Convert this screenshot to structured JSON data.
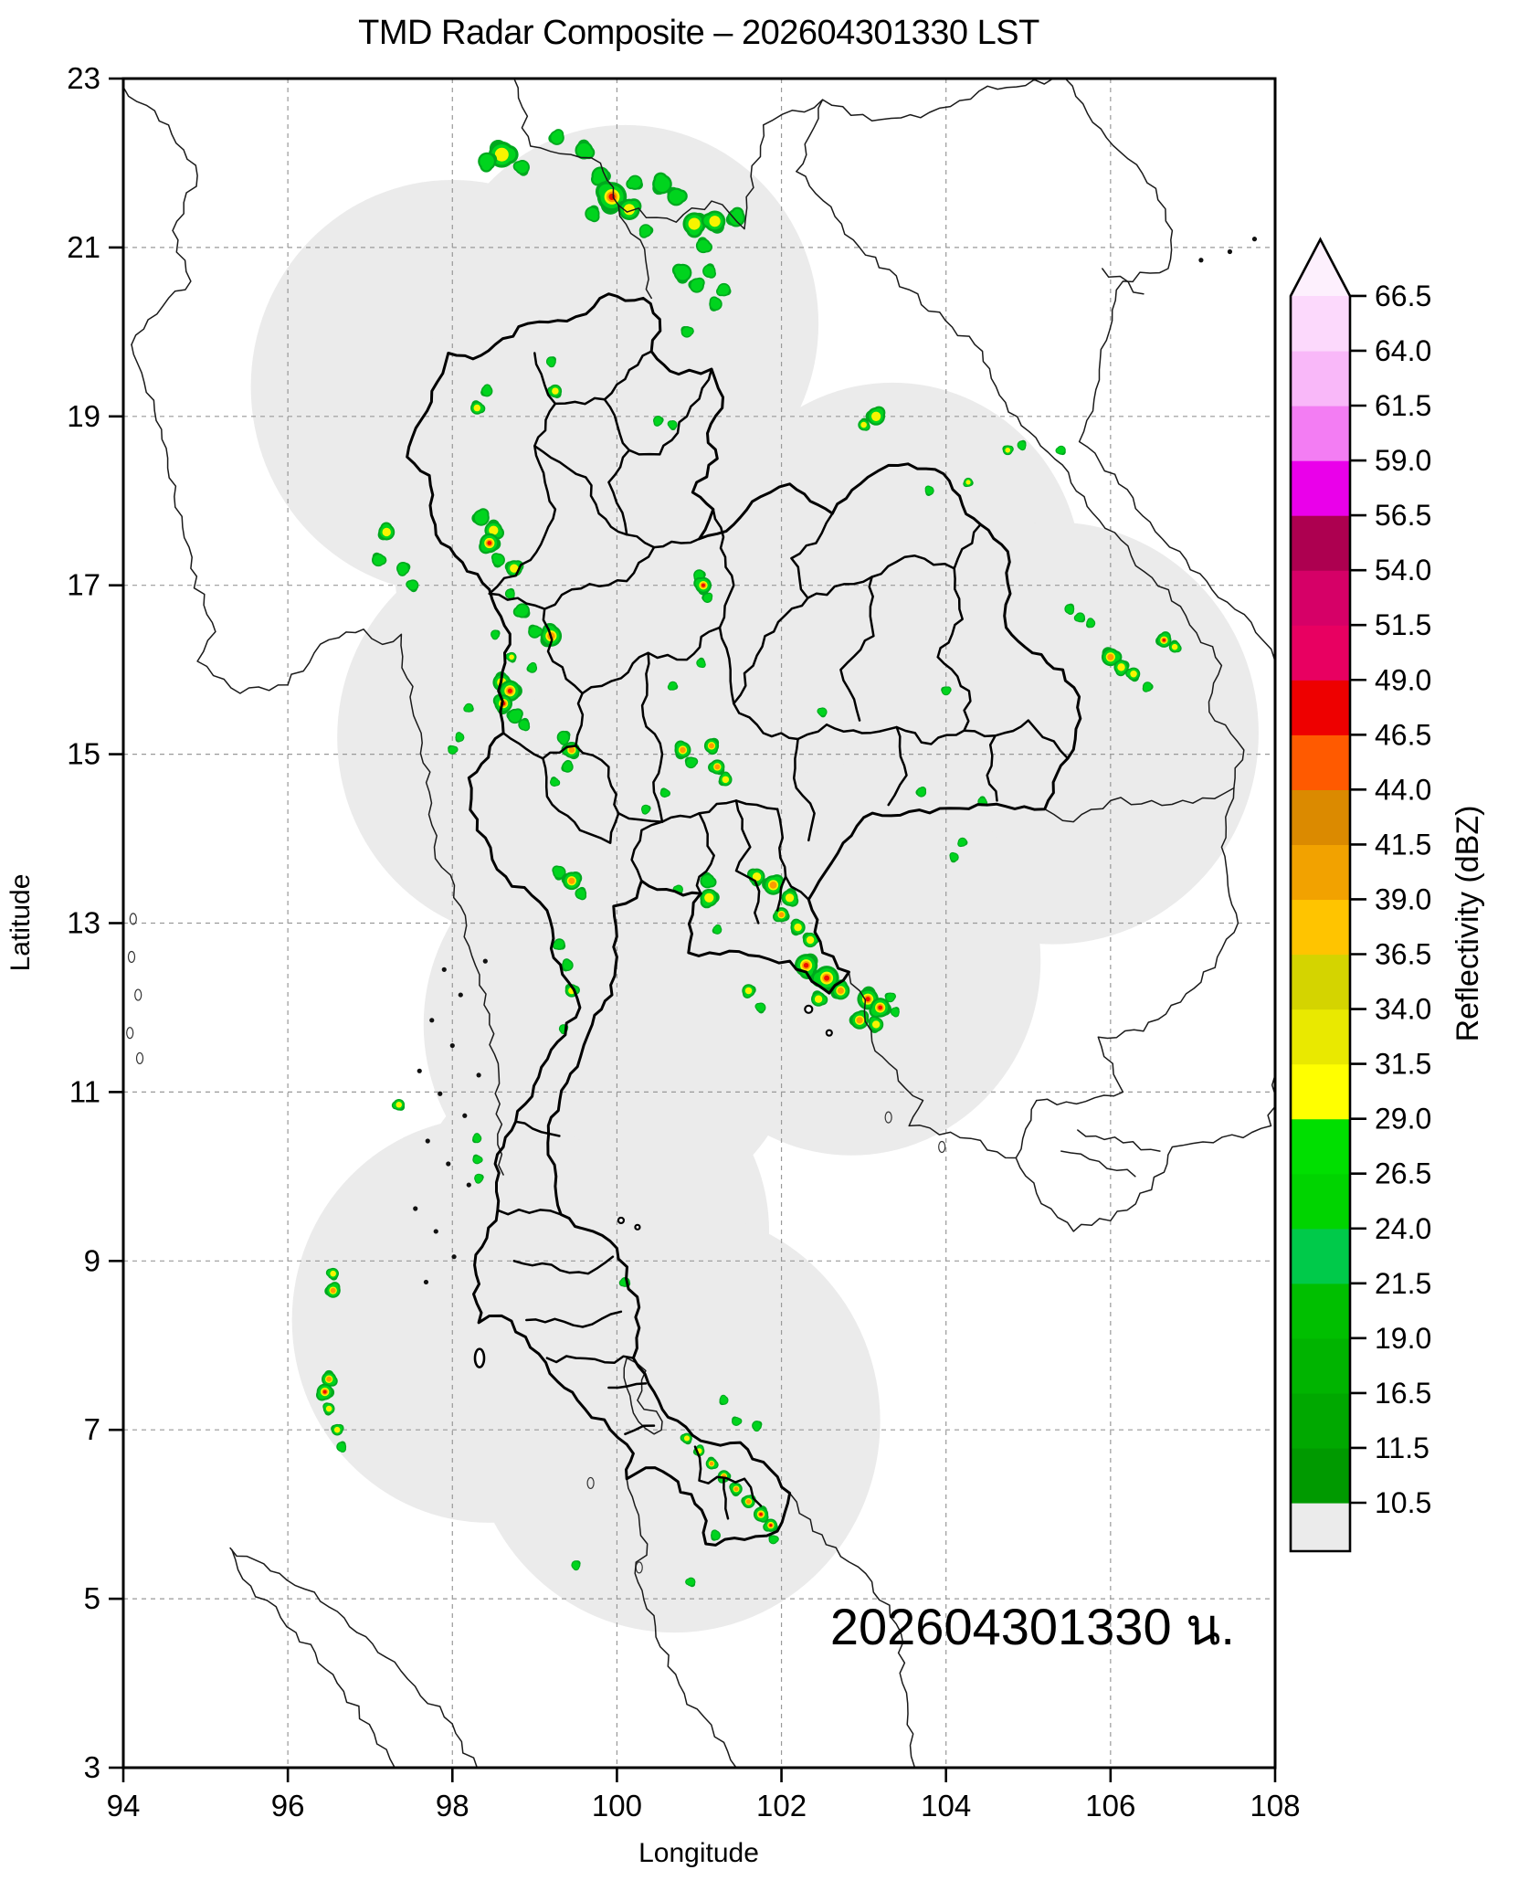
{
  "title": "TMD Radar Composite – 202604301330 LST",
  "annotation": {
    "timestamp": "202604301330 น."
  },
  "axes": {
    "xlabel": "Longitude",
    "ylabel": "Latitude",
    "x_ticks": [
      "94",
      "96",
      "98",
      "100",
      "102",
      "104",
      "106",
      "108"
    ],
    "y_ticks": [
      "3",
      "5",
      "7",
      "9",
      "11",
      "13",
      "15",
      "17",
      "19",
      "21",
      "23"
    ],
    "x_range": [
      94,
      108
    ],
    "y_range": [
      3,
      23
    ],
    "grid": "dashed"
  },
  "colorbar": {
    "label": "Reflectivity (dBZ)",
    "tick_labels": [
      "10.5",
      "11.5",
      "16.5",
      "19.0",
      "21.5",
      "24.0",
      "26.5",
      "29.0",
      "31.5",
      "34.0",
      "36.5",
      "39.0",
      "41.5",
      "44.0",
      "46.5",
      "49.0",
      "51.5",
      "54.0",
      "56.5",
      "59.0",
      "61.5",
      "64.0",
      "66.5"
    ],
    "segment_colors_bottom_to_top": [
      "#009a00",
      "#00a800",
      "#00b400",
      "#00bf00",
      "#00ca4a",
      "#00d400",
      "#00df00",
      "#ffff00",
      "#e9e900",
      "#d4d400",
      "#ffc400",
      "#f2a200",
      "#db8a00",
      "#ff5a00",
      "#ee0000",
      "#e80061",
      "#d60067",
      "#ad0050",
      "#ea00ea",
      "#f37df3",
      "#f9b8f9",
      "#fcd9fc"
    ],
    "under_color": "#ebebeb",
    "over_color": "#fdf0fd",
    "extend": "max"
  },
  "map": {
    "coverage_fill": "#ebebeb",
    "echo_palette": {
      "green_edge": "#00a81e",
      "green": "#00d41e",
      "yellow": "#f8f400",
      "orange": "#ff9b00",
      "red": "#ee1000"
    },
    "radar_coverage_circles": [
      {
        "lon": 98.0,
        "lat": 19.35,
        "radius_deg": 2.45
      },
      {
        "lon": 100.1,
        "lat": 20.1,
        "radius_deg": 2.35
      },
      {
        "lon": 99.7,
        "lat": 17.2,
        "radius_deg": 2.4
      },
      {
        "lon": 100.75,
        "lat": 16.1,
        "radius_deg": 2.4
      },
      {
        "lon": 99.0,
        "lat": 15.2,
        "radius_deg": 2.4
      },
      {
        "lon": 102.5,
        "lat": 16.3,
        "radius_deg": 2.4
      },
      {
        "lon": 103.35,
        "lat": 17.1,
        "radius_deg": 2.3
      },
      {
        "lon": 105.3,
        "lat": 15.25,
        "radius_deg": 2.5
      },
      {
        "lon": 100.6,
        "lat": 14.0,
        "radius_deg": 2.3
      },
      {
        "lon": 100.75,
        "lat": 13.0,
        "radius_deg": 2.3
      },
      {
        "lon": 102.85,
        "lat": 12.55,
        "radius_deg": 2.3
      },
      {
        "lon": 99.95,
        "lat": 11.8,
        "radius_deg": 2.3
      },
      {
        "lon": 99.65,
        "lat": 9.35,
        "radius_deg": 2.2
      },
      {
        "lon": 98.45,
        "lat": 8.3,
        "radius_deg": 2.4
      },
      {
        "lon": 100.7,
        "lat": 7.1,
        "radius_deg": 2.5
      }
    ],
    "echo_tiers": {
      "1": "green <29 dBZ",
      "2": "yellow 29-36.5 dBZ",
      "3": "orange 36.5-46.5 dBZ",
      "4": "red >46.5 dBZ"
    },
    "echoes": [
      [
        98.6,
        22.1,
        2,
        0.16
      ],
      [
        98.42,
        22.02,
        1,
        0.11
      ],
      [
        98.85,
        21.95,
        1,
        0.09
      ],
      [
        99.27,
        22.3,
        1,
        0.09
      ],
      [
        99.6,
        22.15,
        1,
        0.11
      ],
      [
        99.8,
        21.85,
        1,
        0.11
      ],
      [
        99.94,
        21.6,
        4,
        0.18
      ],
      [
        100.15,
        21.45,
        2,
        0.13
      ],
      [
        99.7,
        21.4,
        1,
        0.09
      ],
      [
        100.22,
        21.77,
        1,
        0.09
      ],
      [
        100.55,
        21.75,
        1,
        0.12
      ],
      [
        100.72,
        21.6,
        1,
        0.11
      ],
      [
        100.94,
        21.28,
        2,
        0.14
      ],
      [
        101.19,
        21.31,
        2,
        0.13
      ],
      [
        101.45,
        21.35,
        1,
        0.11
      ],
      [
        101.05,
        21.02,
        1,
        0.09
      ],
      [
        100.35,
        21.2,
        1,
        0.08
      ],
      [
        100.8,
        20.7,
        1,
        0.11
      ],
      [
        100.97,
        20.55,
        1,
        0.09
      ],
      [
        101.12,
        20.72,
        1,
        0.08
      ],
      [
        101.3,
        20.5,
        1,
        0.08
      ],
      [
        101.2,
        20.33,
        1,
        0.08
      ],
      [
        100.85,
        20.0,
        1,
        0.07
      ],
      [
        99.2,
        19.65,
        1,
        0.06
      ],
      [
        99.25,
        19.3,
        2,
        0.08
      ],
      [
        98.42,
        19.3,
        1,
        0.07
      ],
      [
        98.3,
        19.1,
        2,
        0.08
      ],
      [
        100.5,
        18.95,
        1,
        0.06
      ],
      [
        100.68,
        18.9,
        1,
        0.05
      ],
      [
        103.15,
        19.0,
        2,
        0.11
      ],
      [
        103.0,
        18.9,
        2,
        0.07
      ],
      [
        104.27,
        18.22,
        2,
        0.055
      ],
      [
        103.8,
        18.12,
        1,
        0.055
      ],
      [
        104.75,
        18.6,
        2,
        0.06
      ],
      [
        104.92,
        18.66,
        1,
        0.05
      ],
      [
        105.4,
        18.6,
        1,
        0.05
      ],
      [
        97.2,
        17.63,
        2,
        0.1
      ],
      [
        97.1,
        17.3,
        1,
        0.08
      ],
      [
        97.4,
        17.2,
        1,
        0.08
      ],
      [
        97.52,
        17.0,
        1,
        0.07
      ],
      [
        98.35,
        17.8,
        1,
        0.1
      ],
      [
        98.5,
        17.65,
        2,
        0.11
      ],
      [
        98.45,
        17.5,
        4,
        0.12
      ],
      [
        98.56,
        17.3,
        1,
        0.08
      ],
      [
        98.75,
        17.2,
        2,
        0.1
      ],
      [
        98.7,
        16.9,
        1,
        0.06
      ],
      [
        98.85,
        16.7,
        1,
        0.09
      ],
      [
        99.2,
        16.4,
        3,
        0.13
      ],
      [
        99.0,
        16.45,
        1,
        0.08
      ],
      [
        98.52,
        16.42,
        1,
        0.05
      ],
      [
        98.72,
        16.15,
        2,
        0.06
      ],
      [
        98.97,
        16.02,
        1,
        0.06
      ],
      [
        98.6,
        15.85,
        2,
        0.11
      ],
      [
        98.7,
        15.75,
        4,
        0.13
      ],
      [
        98.62,
        15.6,
        4,
        0.11
      ],
      [
        98.76,
        15.45,
        1,
        0.09
      ],
      [
        98.87,
        15.35,
        1,
        0.07
      ],
      [
        98.2,
        15.55,
        1,
        0.05
      ],
      [
        98.09,
        15.2,
        1,
        0.05
      ],
      [
        98.0,
        15.05,
        1,
        0.05
      ],
      [
        99.35,
        15.2,
        1,
        0.08
      ],
      [
        99.45,
        15.05,
        3,
        0.1
      ],
      [
        99.4,
        14.85,
        1,
        0.07
      ],
      [
        99.24,
        14.67,
        1,
        0.05
      ],
      [
        101.0,
        17.12,
        1,
        0.07
      ],
      [
        101.05,
        17.0,
        4,
        0.1
      ],
      [
        101.1,
        16.85,
        1,
        0.06
      ],
      [
        101.02,
        16.08,
        1,
        0.05
      ],
      [
        100.68,
        15.81,
        1,
        0.05
      ],
      [
        100.8,
        15.05,
        3,
        0.1
      ],
      [
        100.9,
        14.9,
        1,
        0.07
      ],
      [
        101.15,
        15.1,
        3,
        0.09
      ],
      [
        101.22,
        14.85,
        3,
        0.09
      ],
      [
        101.32,
        14.7,
        2,
        0.08
      ],
      [
        100.58,
        14.54,
        1,
        0.05
      ],
      [
        100.35,
        14.35,
        1,
        0.05
      ],
      [
        102.5,
        15.5,
        1,
        0.05
      ],
      [
        103.7,
        14.55,
        1,
        0.06
      ],
      [
        104.44,
        14.44,
        1,
        0.045
      ],
      [
        104.2,
        13.96,
        1,
        0.055
      ],
      [
        104.1,
        13.78,
        1,
        0.055
      ],
      [
        104.0,
        15.75,
        1,
        0.05
      ],
      [
        105.5,
        16.72,
        1,
        0.06
      ],
      [
        105.63,
        16.62,
        1,
        0.06
      ],
      [
        105.76,
        16.55,
        1,
        0.055
      ],
      [
        106.0,
        16.15,
        3,
        0.11
      ],
      [
        106.13,
        16.03,
        2,
        0.09
      ],
      [
        106.28,
        15.95,
        2,
        0.08
      ],
      [
        106.65,
        16.35,
        4,
        0.09
      ],
      [
        106.78,
        16.27,
        2,
        0.07
      ],
      [
        106.45,
        15.8,
        1,
        0.06
      ],
      [
        99.3,
        13.6,
        1,
        0.08
      ],
      [
        99.45,
        13.5,
        3,
        0.11
      ],
      [
        99.56,
        13.35,
        1,
        0.07
      ],
      [
        99.3,
        12.75,
        1,
        0.07
      ],
      [
        99.4,
        12.5,
        1,
        0.07
      ],
      [
        99.45,
        12.2,
        2,
        0.08
      ],
      [
        99.35,
        11.75,
        1,
        0.05
      ],
      [
        100.75,
        13.4,
        1,
        0.05
      ],
      [
        101.22,
        12.92,
        1,
        0.05
      ],
      [
        101.1,
        13.5,
        1,
        0.09
      ],
      [
        101.12,
        13.3,
        2,
        0.11
      ],
      [
        101.7,
        13.55,
        2,
        0.1
      ],
      [
        101.9,
        13.45,
        3,
        0.12
      ],
      [
        102.1,
        13.3,
        2,
        0.1
      ],
      [
        102.0,
        13.1,
        3,
        0.09
      ],
      [
        102.2,
        12.95,
        2,
        0.09
      ],
      [
        102.35,
        12.8,
        2,
        0.09
      ],
      [
        102.3,
        12.5,
        4,
        0.14
      ],
      [
        102.55,
        12.35,
        4,
        0.15
      ],
      [
        102.72,
        12.2,
        3,
        0.11
      ],
      [
        102.45,
        12.1,
        2,
        0.09
      ],
      [
        101.6,
        12.2,
        2,
        0.08
      ],
      [
        101.75,
        12.0,
        1,
        0.06
      ],
      [
        102.95,
        11.85,
        3,
        0.11
      ],
      [
        103.05,
        12.1,
        4,
        0.13
      ],
      [
        103.2,
        12.0,
        4,
        0.12
      ],
      [
        103.15,
        11.8,
        2,
        0.09
      ],
      [
        103.32,
        12.12,
        1,
        0.06
      ],
      [
        103.38,
        11.95,
        1,
        0.055
      ],
      [
        97.35,
        10.85,
        2,
        0.07
      ],
      [
        98.3,
        10.45,
        1,
        0.055
      ],
      [
        98.3,
        10.2,
        1,
        0.055
      ],
      [
        98.32,
        9.98,
        1,
        0.055
      ],
      [
        96.55,
        8.85,
        2,
        0.07
      ],
      [
        96.55,
        8.65,
        3,
        0.09
      ],
      [
        96.5,
        7.6,
        3,
        0.09
      ],
      [
        96.45,
        7.45,
        4,
        0.1
      ],
      [
        96.5,
        7.25,
        2,
        0.07
      ],
      [
        96.6,
        7.0,
        2,
        0.07
      ],
      [
        96.65,
        6.8,
        1,
        0.06
      ],
      [
        100.1,
        8.75,
        1,
        0.06
      ],
      [
        101.3,
        7.35,
        1,
        0.055
      ],
      [
        101.45,
        7.1,
        1,
        0.055
      ],
      [
        101.7,
        7.05,
        1,
        0.06
      ],
      [
        100.85,
        6.9,
        2,
        0.065
      ],
      [
        101.0,
        6.75,
        2,
        0.065
      ],
      [
        101.15,
        6.6,
        3,
        0.07
      ],
      [
        101.3,
        6.45,
        3,
        0.075
      ],
      [
        101.45,
        6.3,
        3,
        0.075
      ],
      [
        101.6,
        6.15,
        3,
        0.08
      ],
      [
        101.75,
        6.0,
        4,
        0.09
      ],
      [
        101.87,
        5.87,
        4,
        0.08
      ],
      [
        101.2,
        5.75,
        1,
        0.06
      ],
      [
        101.9,
        5.7,
        1,
        0.05
      ],
      [
        99.5,
        5.4,
        1,
        0.045
      ],
      [
        100.9,
        5.2,
        1,
        0.045
      ]
    ]
  }
}
